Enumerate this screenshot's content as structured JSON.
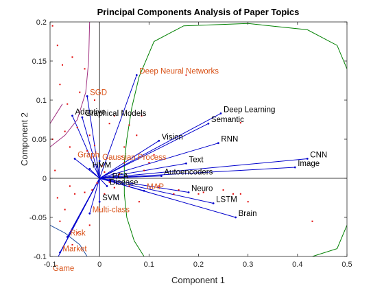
{
  "chart_data": {
    "type": "scatter",
    "title": "Principal Components Analysis of Paper Topics",
    "xlabel": "Component 1",
    "ylabel": "Component 2",
    "xlim": [
      -0.1,
      0.5
    ],
    "ylim": [
      -0.1,
      0.2
    ],
    "xticks": [
      "-0.1",
      "0",
      "0.1",
      "0.2",
      "0.3",
      "0.4",
      "0.5"
    ],
    "yticks": [
      "-0.1",
      "-0.05",
      "0",
      "0.05",
      "0.1",
      "0.15",
      "0.2"
    ],
    "grid": false,
    "colors": {
      "vector": "#0000cc",
      "observation": "#e00000",
      "label_black": "#000000",
      "label_orange": "#d95319",
      "curve_green": "#008000",
      "curve_purple": "#a03080",
      "curve_blue": "#1f4fa0"
    },
    "loadings": [
      {
        "label": "Deep Neural Networks",
        "x": 0.075,
        "y": 0.132,
        "color": "orange"
      },
      {
        "label": "Deep Learning",
        "x": 0.245,
        "y": 0.083,
        "color": "black"
      },
      {
        "label": "Semantic",
        "x": 0.22,
        "y": 0.07,
        "color": "black"
      },
      {
        "label": "Vision",
        "x": 0.12,
        "y": 0.048,
        "color": "black"
      },
      {
        "label": "RNN",
        "x": 0.24,
        "y": 0.045,
        "color": "black"
      },
      {
        "label": "Text",
        "x": 0.175,
        "y": 0.019,
        "color": "black"
      },
      {
        "label": "CNN",
        "x": 0.42,
        "y": 0.025,
        "color": "black"
      },
      {
        "label": "Image",
        "x": 0.395,
        "y": 0.014,
        "color": "black"
      },
      {
        "label": "Autoencoders",
        "x": 0.125,
        "y": 0.003,
        "color": "black"
      },
      {
        "label": "Neuro",
        "x": 0.18,
        "y": -0.018,
        "color": "black"
      },
      {
        "label": "LSTM",
        "x": 0.23,
        "y": -0.032,
        "color": "black"
      },
      {
        "label": "Brain",
        "x": 0.275,
        "y": -0.05,
        "color": "black"
      },
      {
        "label": "Graphical Models",
        "x": -0.035,
        "y": 0.078,
        "color": "black"
      },
      {
        "label": "Adaptive",
        "x": -0.055,
        "y": 0.08,
        "color": "black"
      },
      {
        "label": "SGD",
        "x": -0.025,
        "y": 0.105,
        "color": "orange"
      },
      {
        "label": "Graph",
        "x": -0.05,
        "y": 0.025,
        "color": "orange"
      },
      {
        "label": "Gaussian Process",
        "x": 0.0,
        "y": 0.022,
        "color": "orange"
      },
      {
        "label": "HMM",
        "x": -0.02,
        "y": 0.012,
        "color": "black"
      },
      {
        "label": "MAP",
        "x": 0.09,
        "y": -0.016,
        "color": "orange"
      },
      {
        "label": "SVM",
        "x": 0.0,
        "y": -0.03,
        "color": "black"
      },
      {
        "label": "Multi-class",
        "x": -0.02,
        "y": -0.045,
        "color": "orange"
      },
      {
        "label": "Risk",
        "x": -0.065,
        "y": -0.075,
        "color": "orange"
      },
      {
        "label": "Market",
        "x": -0.08,
        "y": -0.095,
        "color": "orange"
      },
      {
        "label": "Game",
        "x": -0.1,
        "y": -0.12,
        "color": "orange"
      },
      {
        "label": "Disease",
        "x": 0.015,
        "y": -0.01,
        "color": "black"
      },
      {
        "label": "PCA",
        "x": 0.02,
        "y": -0.002,
        "color": "black"
      }
    ],
    "observations": [
      [
        0.43,
        -0.055
      ],
      [
        0.175,
        0.132
      ],
      [
        0.285,
        0.071
      ],
      [
        0.285,
        -0.02
      ],
      [
        0.27,
        -0.02
      ],
      [
        0.25,
        -0.015
      ],
      [
        0.21,
        -0.018
      ],
      [
        0.2,
        -0.02
      ],
      [
        0.12,
        -0.01
      ],
      [
        0.16,
        -0.015
      ],
      [
        0.1,
        0.02
      ],
      [
        0.06,
        0.068
      ],
      [
        0.075,
        0.055
      ],
      [
        0.085,
        0.08
      ],
      [
        0.05,
        0.04
      ],
      [
        0.05,
        0.02
      ],
      [
        0.045,
        0.028
      ],
      [
        0.03,
        0.08
      ],
      [
        0.02,
        0.07
      ],
      [
        -0.03,
        0.14
      ],
      [
        -0.065,
        0.095
      ],
      [
        -0.055,
        0.155
      ],
      [
        -0.075,
        0.145
      ],
      [
        -0.07,
        0.06
      ],
      [
        -0.06,
        0.04
      ],
      [
        -0.045,
        0.065
      ],
      [
        -0.025,
        0.035
      ],
      [
        -0.02,
        0.055
      ],
      [
        -0.01,
        0.042
      ],
      [
        0.005,
        0.016
      ],
      [
        0.01,
        0.008
      ],
      [
        0.02,
        -0.005
      ],
      [
        0.03,
        -0.012
      ],
      [
        0.04,
        0.005
      ],
      [
        -0.005,
        -0.006
      ],
      [
        -0.015,
        -0.015
      ],
      [
        -0.03,
        -0.018
      ],
      [
        -0.05,
        -0.02
      ],
      [
        -0.06,
        -0.01
      ],
      [
        -0.07,
        -0.04
      ],
      [
        -0.08,
        -0.055
      ],
      [
        -0.045,
        -0.07
      ],
      [
        -0.055,
        -0.085
      ],
      [
        -0.02,
        -0.06
      ],
      [
        0.0,
        -0.04
      ],
      [
        0.01,
        -0.02
      ],
      [
        -0.09,
        0.01
      ],
      [
        -0.085,
        -0.025
      ],
      [
        -0.095,
        0.05
      ],
      [
        -0.08,
        0.12
      ],
      [
        0.08,
        -0.03
      ],
      [
        0.09,
        0.01
      ],
      [
        0.06,
        -0.01
      ],
      [
        -0.01,
        0.1
      ],
      [
        -0.04,
        0.11
      ],
      [
        -0.085,
        0.17
      ],
      [
        -0.095,
        0.195
      ],
      [
        0.3,
        -0.03
      ],
      [
        0.15,
        -0.02
      ],
      [
        0.11,
        0.03
      ]
    ],
    "curves": [
      {
        "color": "green",
        "points": [
          [
            0.08,
            0.13
          ],
          [
            0.11,
            0.175
          ],
          [
            0.17,
            0.195
          ],
          [
            0.3,
            0.198
          ],
          [
            0.42,
            0.19
          ],
          [
            0.48,
            0.17
          ],
          [
            0.5,
            0.14
          ]
        ]
      },
      {
        "color": "green",
        "points": [
          [
            0.5,
            -0.06
          ],
          [
            0.48,
            -0.09
          ],
          [
            0.43,
            -0.1
          ]
        ]
      },
      {
        "color": "green",
        "points": [
          [
            0.09,
            -0.1
          ],
          [
            0.07,
            -0.08
          ],
          [
            0.055,
            -0.05
          ],
          [
            0.05,
            -0.02
          ],
          [
            0.05,
            0.0
          ],
          [
            0.05,
            0.02
          ],
          [
            0.055,
            0.05
          ],
          [
            0.065,
            0.09
          ],
          [
            0.08,
            0.13
          ]
        ]
      },
      {
        "color": "purple",
        "points": [
          [
            -0.1,
            0.04
          ],
          [
            -0.07,
            0.055
          ],
          [
            -0.045,
            0.075
          ],
          [
            -0.028,
            0.11
          ],
          [
            -0.022,
            0.15
          ],
          [
            -0.02,
            0.2
          ]
        ]
      },
      {
        "color": "purple",
        "points": [
          [
            -0.1,
            0.07
          ],
          [
            -0.09,
            0.08
          ],
          [
            -0.075,
            0.095
          ]
        ]
      },
      {
        "color": "blue",
        "points": [
          [
            -0.1,
            -0.06
          ],
          [
            -0.07,
            -0.07
          ],
          [
            -0.04,
            -0.085
          ],
          [
            -0.025,
            -0.1
          ]
        ]
      }
    ]
  }
}
